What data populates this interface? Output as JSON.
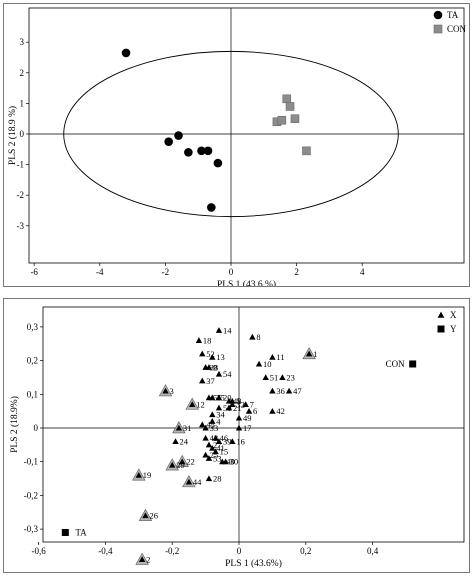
{
  "chart_data": [
    {
      "type": "scatter",
      "xlabel": "PLS 1 (43.6 %)",
      "ylabel": "PLS 2 (18.9 %)",
      "xlim": [
        -6,
        6
      ],
      "ylim": [
        -4,
        4
      ],
      "xticks": [
        "-6",
        "-4",
        "-2",
        "0",
        "2",
        "4"
      ],
      "yticks": [
        "3",
        "2",
        "1",
        "0",
        "-1",
        "-2",
        "-3"
      ],
      "xtick_values": [
        -6,
        -4,
        -2,
        0,
        2,
        4
      ],
      "ytick_values": [
        3,
        2,
        1,
        0,
        -1,
        -2,
        -3
      ],
      "grid": false,
      "legend_position": "top-right",
      "confidence_ellipse": {
        "center": [
          0,
          0
        ],
        "semi_axis_x": 5.1,
        "semi_axis_y": 2.7
      },
      "series": [
        {
          "name": "TA",
          "marker": "circle",
          "color": "#000000",
          "points": [
            [
              -3.2,
              2.65
            ],
            [
              -1.9,
              -0.25
            ],
            [
              -1.6,
              -0.05
            ],
            [
              -1.3,
              -0.6
            ],
            [
              -0.9,
              -0.55
            ],
            [
              -0.7,
              -0.55
            ],
            [
              -0.4,
              -0.95
            ],
            [
              -0.6,
              -2.4
            ]
          ]
        },
        {
          "name": "CON",
          "marker": "square",
          "color": "#8c8c8c",
          "points": [
            [
              1.4,
              0.4
            ],
            [
              1.55,
              0.45
            ],
            [
              1.7,
              1.15
            ],
            [
              1.8,
              0.9
            ],
            [
              1.95,
              0.5
            ],
            [
              2.3,
              -0.55
            ]
          ]
        }
      ]
    },
    {
      "type": "scatter",
      "xlabel": "PLS 1 (43.6%)",
      "ylabel": "PLS 2 (18.9%)",
      "xlim": [
        -0.6,
        0.6
      ],
      "ylim": [
        -0.4,
        0.3
      ],
      "xticks": [
        "-0,6",
        "-0,4",
        "-0,2",
        "0",
        "0,2",
        "0,4"
      ],
      "yticks": [
        "0,3",
        "0,2",
        "0,1",
        "0",
        "-0,1",
        "-0,2",
        "-0,3"
      ],
      "xtick_values": [
        -0.6,
        -0.4,
        -0.2,
        0,
        0.2,
        0.4
      ],
      "ytick_values": [
        0.3,
        0.2,
        0.1,
        0,
        -0.1,
        -0.2,
        -0.3
      ],
      "grid": false,
      "legend_position": "top-right",
      "legend": [
        {
          "name": "X",
          "marker": "triangle"
        },
        {
          "name": "Y",
          "marker": "square"
        }
      ],
      "x_variables": [
        {
          "label": "1",
          "x": 0.21,
          "y": 0.22,
          "highlight": true
        },
        {
          "label": "2",
          "x": -0.29,
          "y": -0.39,
          "highlight": true
        },
        {
          "label": "3",
          "x": -0.22,
          "y": 0.11,
          "highlight": true
        },
        {
          "label": "4",
          "x": -0.08,
          "y": 0.02
        },
        {
          "label": "5",
          "x": -0.02,
          "y": 0.08
        },
        {
          "label": "6",
          "x": 0.03,
          "y": 0.05
        },
        {
          "label": "7",
          "x": 0.02,
          "y": 0.07
        },
        {
          "label": "8",
          "x": 0.04,
          "y": 0.27
        },
        {
          "label": "9",
          "x": -0.09,
          "y": 0.18
        },
        {
          "label": "10",
          "x": 0.06,
          "y": 0.19
        },
        {
          "label": "11",
          "x": 0.1,
          "y": 0.21
        },
        {
          "label": "12",
          "x": -0.14,
          "y": 0.07,
          "highlight": true
        },
        {
          "label": "13",
          "x": -0.08,
          "y": 0.21
        },
        {
          "label": "14",
          "x": -0.06,
          "y": 0.29
        },
        {
          "label": "15",
          "x": -0.07,
          "y": -0.07
        },
        {
          "label": "16",
          "x": -0.02,
          "y": -0.04
        },
        {
          "label": "17",
          "x": 0.0,
          "y": 0.0
        },
        {
          "label": "18",
          "x": -0.12,
          "y": 0.26
        },
        {
          "label": "19",
          "x": -0.3,
          "y": -0.14,
          "highlight": true
        },
        {
          "label": "20",
          "x": -0.06,
          "y": 0.09
        },
        {
          "label": "21",
          "x": -0.03,
          "y": 0.06
        },
        {
          "label": "22",
          "x": -0.17,
          "y": -0.1,
          "highlight": true
        },
        {
          "label": "23",
          "x": 0.13,
          "y": 0.15
        },
        {
          "label": "24",
          "x": -0.19,
          "y": -0.04
        },
        {
          "label": "25",
          "x": -0.1,
          "y": -0.08
        },
        {
          "label": "26",
          "x": -0.28,
          "y": -0.26,
          "highlight": true
        },
        {
          "label": "27",
          "x": -0.09,
          "y": -0.05
        },
        {
          "label": "28",
          "x": -0.09,
          "y": -0.15
        },
        {
          "label": "29",
          "x": -0.2,
          "y": -0.11,
          "highlight": true
        },
        {
          "label": "30",
          "x": -0.04,
          "y": -0.1
        },
        {
          "label": "31",
          "x": -0.18,
          "y": 0.0,
          "highlight": true
        },
        {
          "label": "32",
          "x": -0.02,
          "y": 0.07
        },
        {
          "label": "33",
          "x": -0.1,
          "y": 0.0
        },
        {
          "label": "34",
          "x": -0.08,
          "y": 0.04
        },
        {
          "label": "35",
          "x": -0.08,
          "y": 0.09
        },
        {
          "label": "36",
          "x": 0.1,
          "y": 0.11
        },
        {
          "label": "37",
          "x": -0.11,
          "y": 0.14
        },
        {
          "label": "38",
          "x": -0.1,
          "y": 0.18
        },
        {
          "label": "39",
          "x": -0.06,
          "y": -0.04
        },
        {
          "label": "40",
          "x": -0.05,
          "y": -0.1
        },
        {
          "label": "41",
          "x": -0.08,
          "y": -0.06
        },
        {
          "label": "42",
          "x": 0.1,
          "y": 0.05
        },
        {
          "label": "43",
          "x": -0.1,
          "y": -0.03
        },
        {
          "label": "44",
          "x": -0.15,
          "y": -0.16,
          "highlight": true
        },
        {
          "label": "45",
          "x": -0.11,
          "y": 0.01
        },
        {
          "label": "46",
          "x": -0.07,
          "y": -0.03
        },
        {
          "label": "47",
          "x": 0.15,
          "y": 0.11
        },
        {
          "label": "48",
          "x": -0.03,
          "y": 0.08
        },
        {
          "label": "49",
          "x": 0.0,
          "y": 0.03
        },
        {
          "label": "50",
          "x": -0.06,
          "y": 0.06
        },
        {
          "label": "51",
          "x": 0.08,
          "y": 0.15
        },
        {
          "label": "52",
          "x": -0.11,
          "y": 0.22
        },
        {
          "label": "53",
          "x": -0.09,
          "y": -0.09
        },
        {
          "label": "54",
          "x": -0.06,
          "y": 0.16
        },
        {
          "label": "55",
          "x": -0.09,
          "y": 0.09
        }
      ],
      "y_variables": [
        {
          "label": "CON",
          "x": 0.52,
          "y": 0.19
        },
        {
          "label": "TA",
          "x": -0.52,
          "y": -0.31
        }
      ]
    }
  ]
}
